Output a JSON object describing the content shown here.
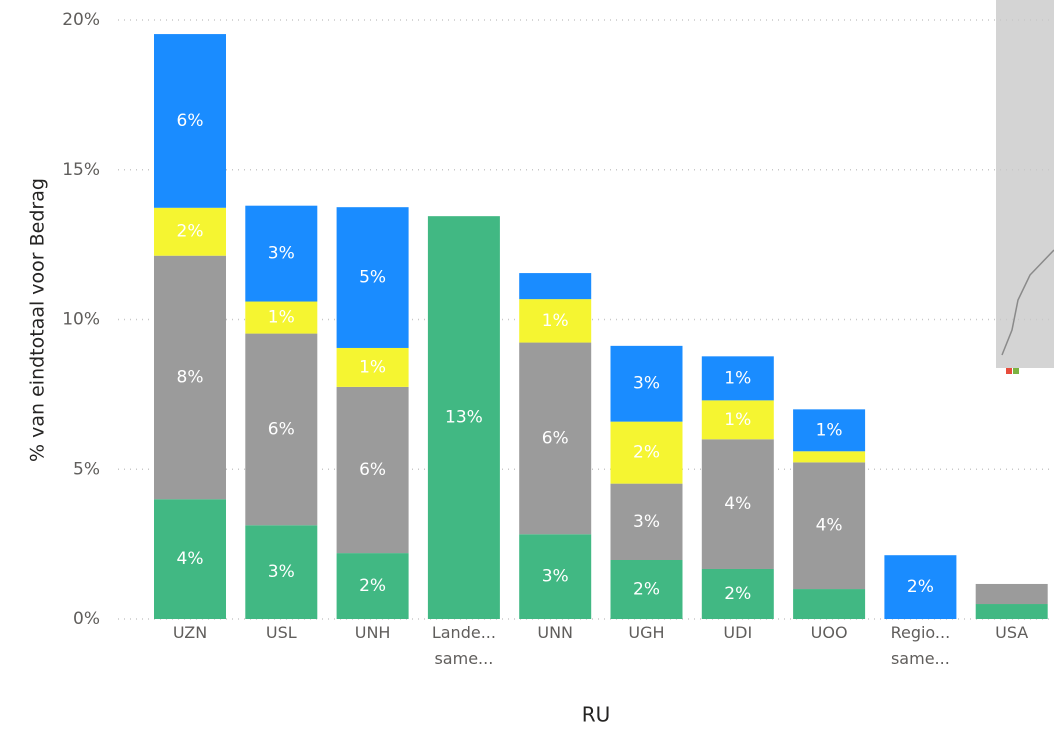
{
  "chart_data": {
    "type": "stacked_bar",
    "y_label": "% van eindtotaal voor Bedrag",
    "x_label": "RU",
    "categories": [
      "UZN",
      "USL",
      "UNH",
      "Lande... same...",
      "UNN",
      "UGH",
      "UDI",
      "UOO",
      "Regio... same...",
      "USA"
    ],
    "series": [
      {
        "color": "#41b883",
        "values": [
          4.0,
          3.13,
          2.2,
          13.45,
          2.83,
          1.97,
          1.67,
          1.0,
          null,
          0.5
        ],
        "value_labels": [
          "4%",
          "3%",
          "2%",
          "13%",
          "3%",
          "2%",
          "2%",
          null,
          null,
          null
        ]
      },
      {
        "color": "#9b9b9b",
        "values": [
          8.13,
          6.4,
          5.55,
          null,
          6.4,
          2.55,
          4.33,
          4.23,
          null,
          0.67
        ],
        "value_labels": [
          "8%",
          "6%",
          "6%",
          null,
          "6%",
          "3%",
          "4%",
          "4%",
          null,
          null
        ]
      },
      {
        "color": "#f5f531",
        "values": [
          1.6,
          1.07,
          1.3,
          null,
          1.45,
          2.07,
          1.3,
          0.37,
          null,
          null
        ],
        "value_labels": [
          "2%",
          "1%",
          "1%",
          null,
          "1%",
          "2%",
          "1%",
          null,
          null,
          null
        ]
      },
      {
        "color": "#1a8cff",
        "values": [
          5.8,
          3.2,
          4.7,
          null,
          0.87,
          2.53,
          1.47,
          1.4,
          2.13,
          null
        ],
        "value_labels": [
          "6%",
          "3%",
          "5%",
          null,
          null,
          "3%",
          "1%",
          "1%",
          "2%",
          null
        ]
      }
    ],
    "ylim": [
      0,
      20
    ],
    "yticks": [
      {
        "value": 0,
        "label": "0%"
      },
      {
        "value": 5,
        "label": "5%"
      },
      {
        "value": 10,
        "label": "10%"
      },
      {
        "value": 15,
        "label": "15%"
      },
      {
        "value": 20,
        "label": "20%"
      }
    ],
    "grid": true
  }
}
